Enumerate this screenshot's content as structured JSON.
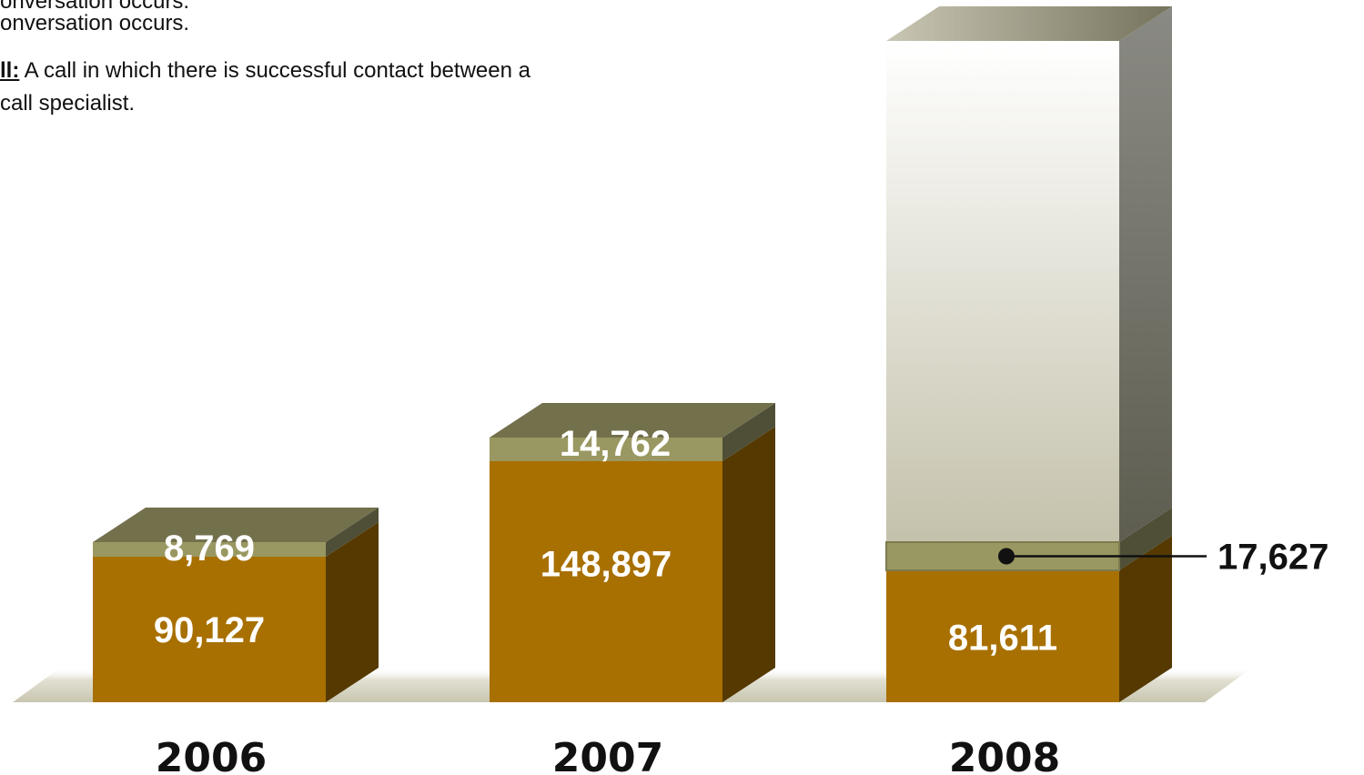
{
  "definitions": [
    {
      "term": "",
      "text": "onversation occurs."
    },
    {
      "term": "ll:",
      "text": " A call in which there is successful contact between a"
    },
    {
      "term": "",
      "text": "call specialist."
    }
  ],
  "chart_data": {
    "type": "bar",
    "stacked": true,
    "categories": [
      "2006",
      "2007",
      "2008"
    ],
    "series": [
      {
        "values": [
          90127,
          148897,
          81611
        ],
        "color": "#a87000",
        "labels": [
          "90,127",
          "148,897",
          "81,611"
        ]
      },
      {
        "values": [
          8769,
          14762,
          17627
        ],
        "color": "#9a9862",
        "labels": [
          "8,769",
          "14,762",
          "17,627"
        ]
      }
    ],
    "annotation": {
      "category": "2008",
      "text": "17,627"
    },
    "colors": {
      "top": "#73704c",
      "side_dark": "#553900",
      "upper_block": "#c9c6b2",
      "floor": "#cfcdb8"
    }
  }
}
